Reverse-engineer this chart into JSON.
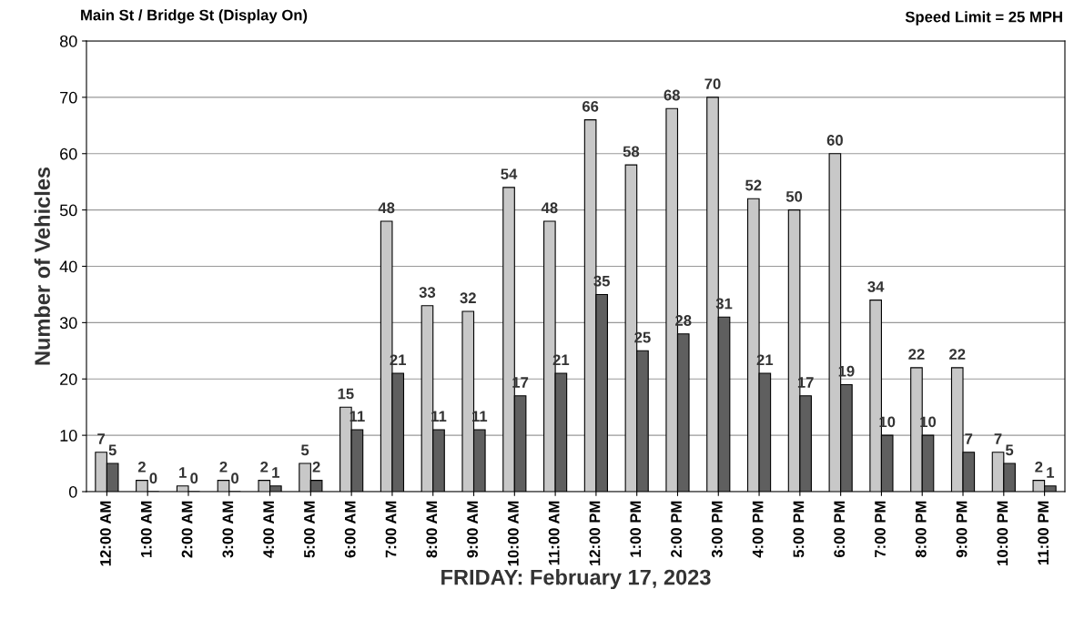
{
  "chart_data": {
    "type": "bar",
    "title": "Main St / Bridge St (Display On)",
    "annotations": [
      "Speed Limit = 25 MPH"
    ],
    "xlabel": "FRIDAY: February 17, 2023",
    "ylabel": "Number of Vehicles",
    "categories": [
      "12:00 AM",
      "1:00 AM",
      "2:00 AM",
      "3:00 AM",
      "4:00 AM",
      "5:00 AM",
      "6:00 AM",
      "7:00 AM",
      "8:00 AM",
      "9:00 AM",
      "10:00 AM",
      "11:00 AM",
      "12:00 PM",
      "1:00 PM",
      "2:00 PM",
      "3:00 PM",
      "4:00 PM",
      "5:00 PM",
      "6:00 PM",
      "7:00 PM",
      "8:00 PM",
      "9:00 PM",
      "10:00 PM",
      "11:00 PM"
    ],
    "series": [
      {
        "color": "#c8c8c8",
        "values": [
          7,
          2,
          1,
          2,
          2,
          5,
          15,
          48,
          33,
          32,
          54,
          48,
          66,
          58,
          68,
          70,
          52,
          50,
          60,
          34,
          22,
          22,
          7,
          2
        ]
      },
      {
        "color": "#5f5f5f",
        "values": [
          5,
          0,
          0,
          0,
          1,
          2,
          11,
          21,
          11,
          11,
          17,
          21,
          35,
          25,
          28,
          31,
          21,
          17,
          19,
          10,
          10,
          7,
          5,
          1
        ]
      }
    ],
    "ylim": [
      0,
      80
    ],
    "yticks": [
      0,
      10,
      20,
      30,
      40,
      50,
      60,
      70,
      80
    ],
    "grid": "y",
    "data_labels": true
  }
}
